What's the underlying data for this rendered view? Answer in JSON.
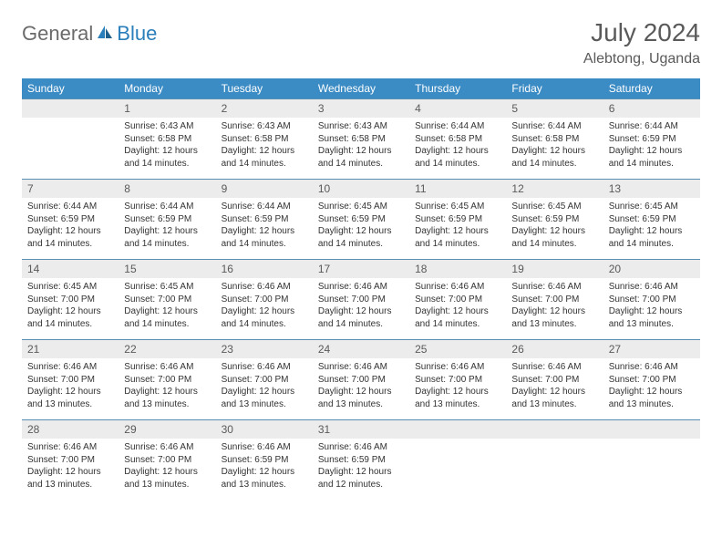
{
  "logo": {
    "part1": "General",
    "part2": "Blue"
  },
  "title": "July 2024",
  "location": "Alebtong, Uganda",
  "colors": {
    "header_bg": "#3b8bc4",
    "header_text": "#ffffff",
    "daynum_bg": "#ececec",
    "daynum_text": "#5a5a5a",
    "rule": "#5a8fb5",
    "body_text": "#333333",
    "logo_gray": "#6b6b6b",
    "logo_blue": "#2a7fba"
  },
  "days_of_week": [
    "Sunday",
    "Monday",
    "Tuesday",
    "Wednesday",
    "Thursday",
    "Friday",
    "Saturday"
  ],
  "weeks": [
    [
      null,
      {
        "n": "1",
        "sr": "6:43 AM",
        "ss": "6:58 PM",
        "dl": "12 hours and 14 minutes."
      },
      {
        "n": "2",
        "sr": "6:43 AM",
        "ss": "6:58 PM",
        "dl": "12 hours and 14 minutes."
      },
      {
        "n": "3",
        "sr": "6:43 AM",
        "ss": "6:58 PM",
        "dl": "12 hours and 14 minutes."
      },
      {
        "n": "4",
        "sr": "6:44 AM",
        "ss": "6:58 PM",
        "dl": "12 hours and 14 minutes."
      },
      {
        "n": "5",
        "sr": "6:44 AM",
        "ss": "6:58 PM",
        "dl": "12 hours and 14 minutes."
      },
      {
        "n": "6",
        "sr": "6:44 AM",
        "ss": "6:59 PM",
        "dl": "12 hours and 14 minutes."
      }
    ],
    [
      {
        "n": "7",
        "sr": "6:44 AM",
        "ss": "6:59 PM",
        "dl": "12 hours and 14 minutes."
      },
      {
        "n": "8",
        "sr": "6:44 AM",
        "ss": "6:59 PM",
        "dl": "12 hours and 14 minutes."
      },
      {
        "n": "9",
        "sr": "6:44 AM",
        "ss": "6:59 PM",
        "dl": "12 hours and 14 minutes."
      },
      {
        "n": "10",
        "sr": "6:45 AM",
        "ss": "6:59 PM",
        "dl": "12 hours and 14 minutes."
      },
      {
        "n": "11",
        "sr": "6:45 AM",
        "ss": "6:59 PM",
        "dl": "12 hours and 14 minutes."
      },
      {
        "n": "12",
        "sr": "6:45 AM",
        "ss": "6:59 PM",
        "dl": "12 hours and 14 minutes."
      },
      {
        "n": "13",
        "sr": "6:45 AM",
        "ss": "6:59 PM",
        "dl": "12 hours and 14 minutes."
      }
    ],
    [
      {
        "n": "14",
        "sr": "6:45 AM",
        "ss": "7:00 PM",
        "dl": "12 hours and 14 minutes."
      },
      {
        "n": "15",
        "sr": "6:45 AM",
        "ss": "7:00 PM",
        "dl": "12 hours and 14 minutes."
      },
      {
        "n": "16",
        "sr": "6:46 AM",
        "ss": "7:00 PM",
        "dl": "12 hours and 14 minutes."
      },
      {
        "n": "17",
        "sr": "6:46 AM",
        "ss": "7:00 PM",
        "dl": "12 hours and 14 minutes."
      },
      {
        "n": "18",
        "sr": "6:46 AM",
        "ss": "7:00 PM",
        "dl": "12 hours and 14 minutes."
      },
      {
        "n": "19",
        "sr": "6:46 AM",
        "ss": "7:00 PM",
        "dl": "12 hours and 13 minutes."
      },
      {
        "n": "20",
        "sr": "6:46 AM",
        "ss": "7:00 PM",
        "dl": "12 hours and 13 minutes."
      }
    ],
    [
      {
        "n": "21",
        "sr": "6:46 AM",
        "ss": "7:00 PM",
        "dl": "12 hours and 13 minutes."
      },
      {
        "n": "22",
        "sr": "6:46 AM",
        "ss": "7:00 PM",
        "dl": "12 hours and 13 minutes."
      },
      {
        "n": "23",
        "sr": "6:46 AM",
        "ss": "7:00 PM",
        "dl": "12 hours and 13 minutes."
      },
      {
        "n": "24",
        "sr": "6:46 AM",
        "ss": "7:00 PM",
        "dl": "12 hours and 13 minutes."
      },
      {
        "n": "25",
        "sr": "6:46 AM",
        "ss": "7:00 PM",
        "dl": "12 hours and 13 minutes."
      },
      {
        "n": "26",
        "sr": "6:46 AM",
        "ss": "7:00 PM",
        "dl": "12 hours and 13 minutes."
      },
      {
        "n": "27",
        "sr": "6:46 AM",
        "ss": "7:00 PM",
        "dl": "12 hours and 13 minutes."
      }
    ],
    [
      {
        "n": "28",
        "sr": "6:46 AM",
        "ss": "7:00 PM",
        "dl": "12 hours and 13 minutes."
      },
      {
        "n": "29",
        "sr": "6:46 AM",
        "ss": "7:00 PM",
        "dl": "12 hours and 13 minutes."
      },
      {
        "n": "30",
        "sr": "6:46 AM",
        "ss": "6:59 PM",
        "dl": "12 hours and 13 minutes."
      },
      {
        "n": "31",
        "sr": "6:46 AM",
        "ss": "6:59 PM",
        "dl": "12 hours and 12 minutes."
      },
      null,
      null,
      null
    ]
  ],
  "labels": {
    "sunrise": "Sunrise:",
    "sunset": "Sunset:",
    "daylight": "Daylight:"
  }
}
